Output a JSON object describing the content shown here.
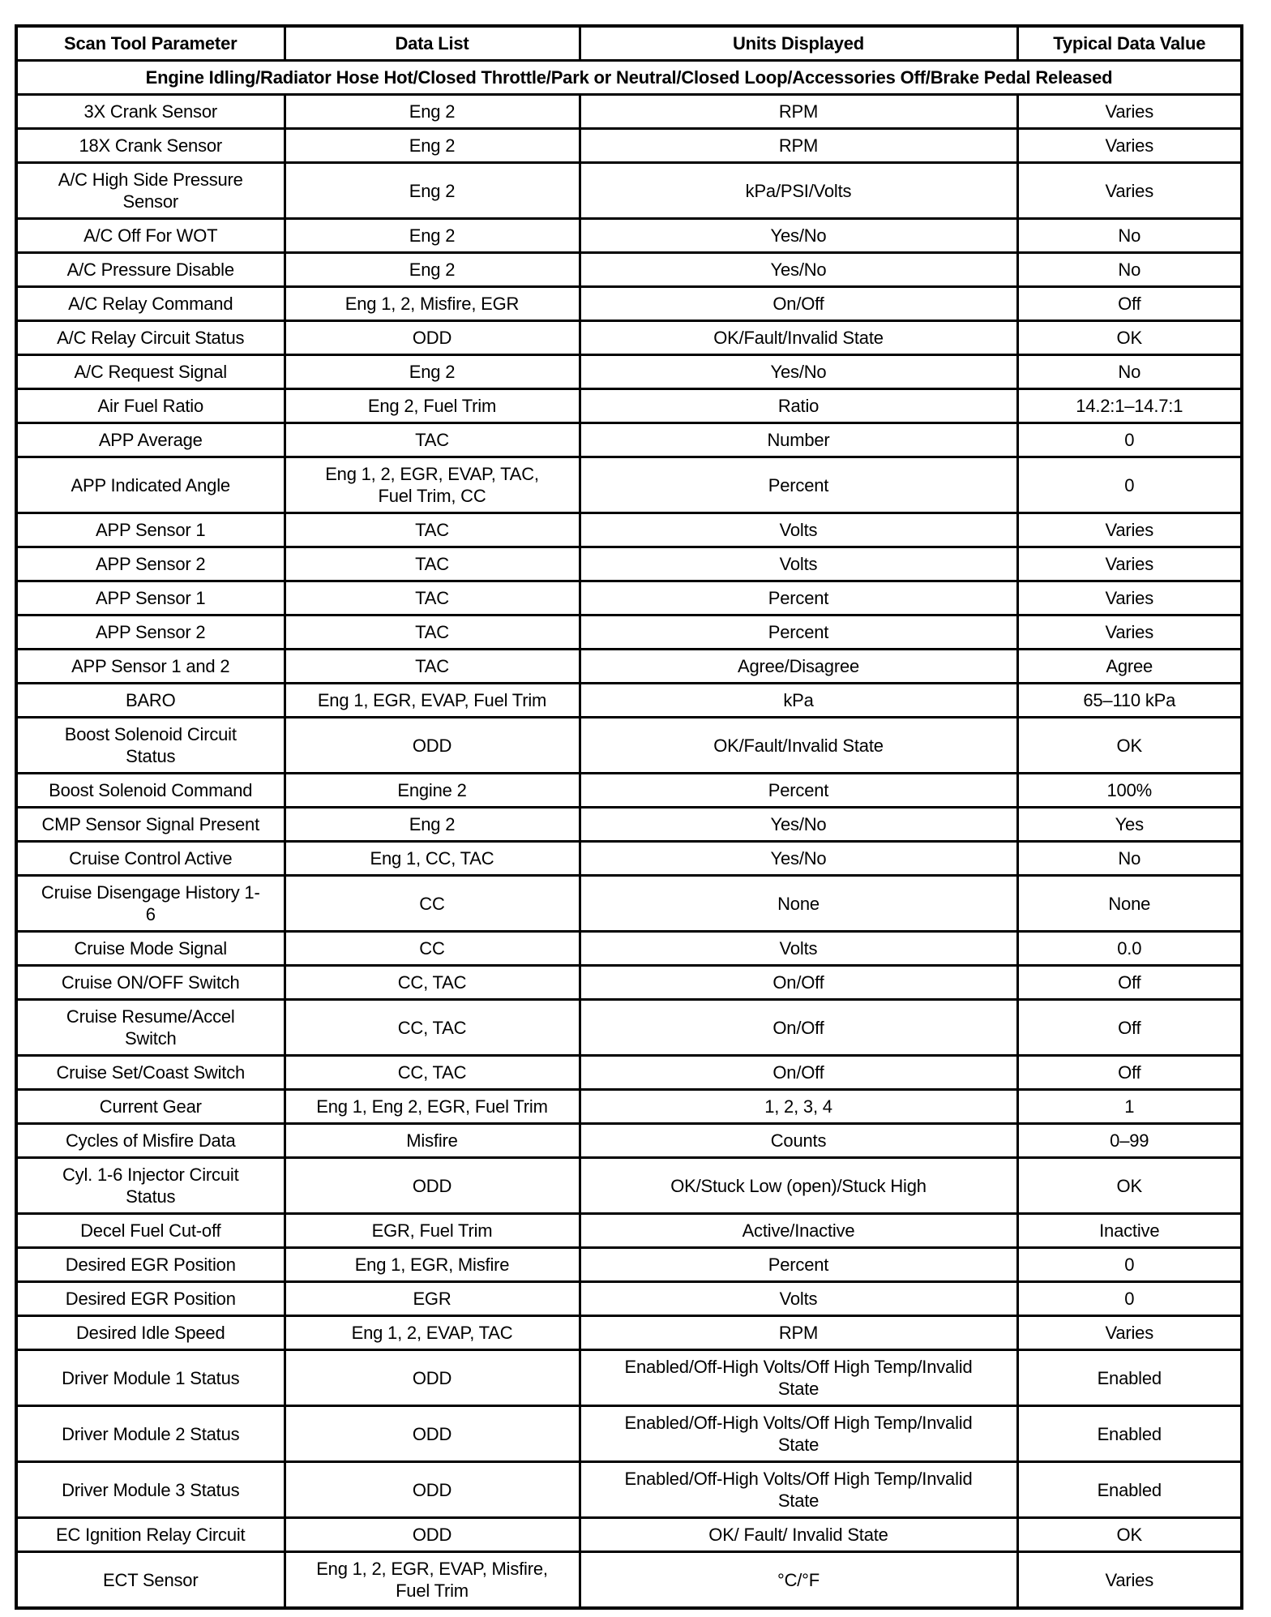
{
  "headers": [
    "Scan Tool Parameter",
    "Data List",
    "Units Displayed",
    "Typical Data Value"
  ],
  "condition": "Engine Idling/Radiator Hose Hot/Closed Throttle/Park or Neutral/Closed Loop/Accessories Off/Brake Pedal Released",
  "rows": [
    [
      "3X Crank Sensor",
      "Eng 2",
      "RPM",
      "Varies"
    ],
    [
      "18X Crank Sensor",
      "Eng 2",
      "RPM",
      "Varies"
    ],
    [
      "A/C High Side Pressure\nSensor",
      "Eng 2",
      "kPa/PSI/Volts",
      "Varies"
    ],
    [
      "A/C Off For WOT",
      "Eng 2",
      "Yes/No",
      "No"
    ],
    [
      "A/C Pressure Disable",
      "Eng 2",
      "Yes/No",
      "No"
    ],
    [
      "A/C Relay Command",
      "Eng 1, 2, Misfire, EGR",
      "On/Off",
      "Off"
    ],
    [
      "A/C Relay Circuit Status",
      "ODD",
      "OK/Fault/Invalid State",
      "OK"
    ],
    [
      "A/C Request Signal",
      "Eng 2",
      "Yes/No",
      "No"
    ],
    [
      "Air Fuel Ratio",
      "Eng 2, Fuel Trim",
      "Ratio",
      "14.2:1–14.7:1"
    ],
    [
      "APP Average",
      "TAC",
      "Number",
      "0"
    ],
    [
      "APP Indicated Angle",
      "Eng 1, 2, EGR, EVAP, TAC,\nFuel Trim, CC",
      "Percent",
      "0"
    ],
    [
      "APP Sensor 1",
      "TAC",
      "Volts",
      "Varies"
    ],
    [
      "APP Sensor 2",
      "TAC",
      "Volts",
      "Varies"
    ],
    [
      "APP Sensor 1",
      "TAC",
      "Percent",
      "Varies"
    ],
    [
      "APP Sensor 2",
      "TAC",
      "Percent",
      "Varies"
    ],
    [
      "APP Sensor 1 and 2",
      "TAC",
      "Agree/Disagree",
      "Agree"
    ],
    [
      "BARO",
      "Eng 1, EGR, EVAP, Fuel Trim",
      "kPa",
      "65–110 kPa"
    ],
    [
      "Boost Solenoid Circuit\nStatus",
      "ODD",
      "OK/Fault/Invalid State",
      "OK"
    ],
    [
      "Boost Solenoid Command",
      "Engine 2",
      "Percent",
      "100%"
    ],
    [
      "CMP Sensor Signal Present",
      "Eng 2",
      "Yes/No",
      "Yes"
    ],
    [
      "Cruise Control Active",
      "Eng 1, CC, TAC",
      "Yes/No",
      "No"
    ],
    [
      "Cruise Disengage History 1-\n6",
      "CC",
      "None",
      "None"
    ],
    [
      "Cruise Mode Signal",
      "CC",
      "Volts",
      "0.0"
    ],
    [
      "Cruise ON/OFF Switch",
      "CC, TAC",
      "On/Off",
      "Off"
    ],
    [
      "Cruise Resume/Accel\nSwitch",
      "CC, TAC",
      "On/Off",
      "Off"
    ],
    [
      "Cruise Set/Coast Switch",
      "CC, TAC",
      "On/Off",
      "Off"
    ],
    [
      "Current Gear",
      "Eng 1, Eng 2, EGR, Fuel Trim",
      "1, 2, 3, 4",
      "1"
    ],
    [
      "Cycles of Misfire Data",
      "Misfire",
      "Counts",
      "0–99"
    ],
    [
      "Cyl. 1-6 Injector Circuit\nStatus",
      "ODD",
      "OK/Stuck Low (open)/Stuck High",
      "OK"
    ],
    [
      "Decel Fuel Cut-off",
      "EGR, Fuel Trim",
      "Active/Inactive",
      "Inactive"
    ],
    [
      "Desired EGR Position",
      "Eng 1, EGR, Misfire",
      "Percent",
      "0"
    ],
    [
      "Desired EGR Position",
      "EGR",
      "Volts",
      "0"
    ],
    [
      "Desired Idle Speed",
      "Eng 1, 2, EVAP, TAC",
      "RPM",
      "Varies"
    ],
    [
      "Driver Module 1 Status",
      "ODD",
      "Enabled/Off-High Volts/Off High Temp/Invalid\nState",
      "Enabled"
    ],
    [
      "Driver Module 2 Status",
      "ODD",
      "Enabled/Off-High Volts/Off High Temp/Invalid\nState",
      "Enabled"
    ],
    [
      "Driver Module 3 Status",
      "ODD",
      "Enabled/Off-High Volts/Off High Temp/Invalid\nState",
      "Enabled"
    ],
    [
      "EC Ignition Relay Circuit",
      "ODD",
      "OK/ Fault/ Invalid State",
      "OK"
    ],
    [
      "ECT Sensor",
      "Eng 1, 2, EGR, EVAP, Misfire,\nFuel Trim",
      "°C/°F",
      "Varies"
    ]
  ]
}
